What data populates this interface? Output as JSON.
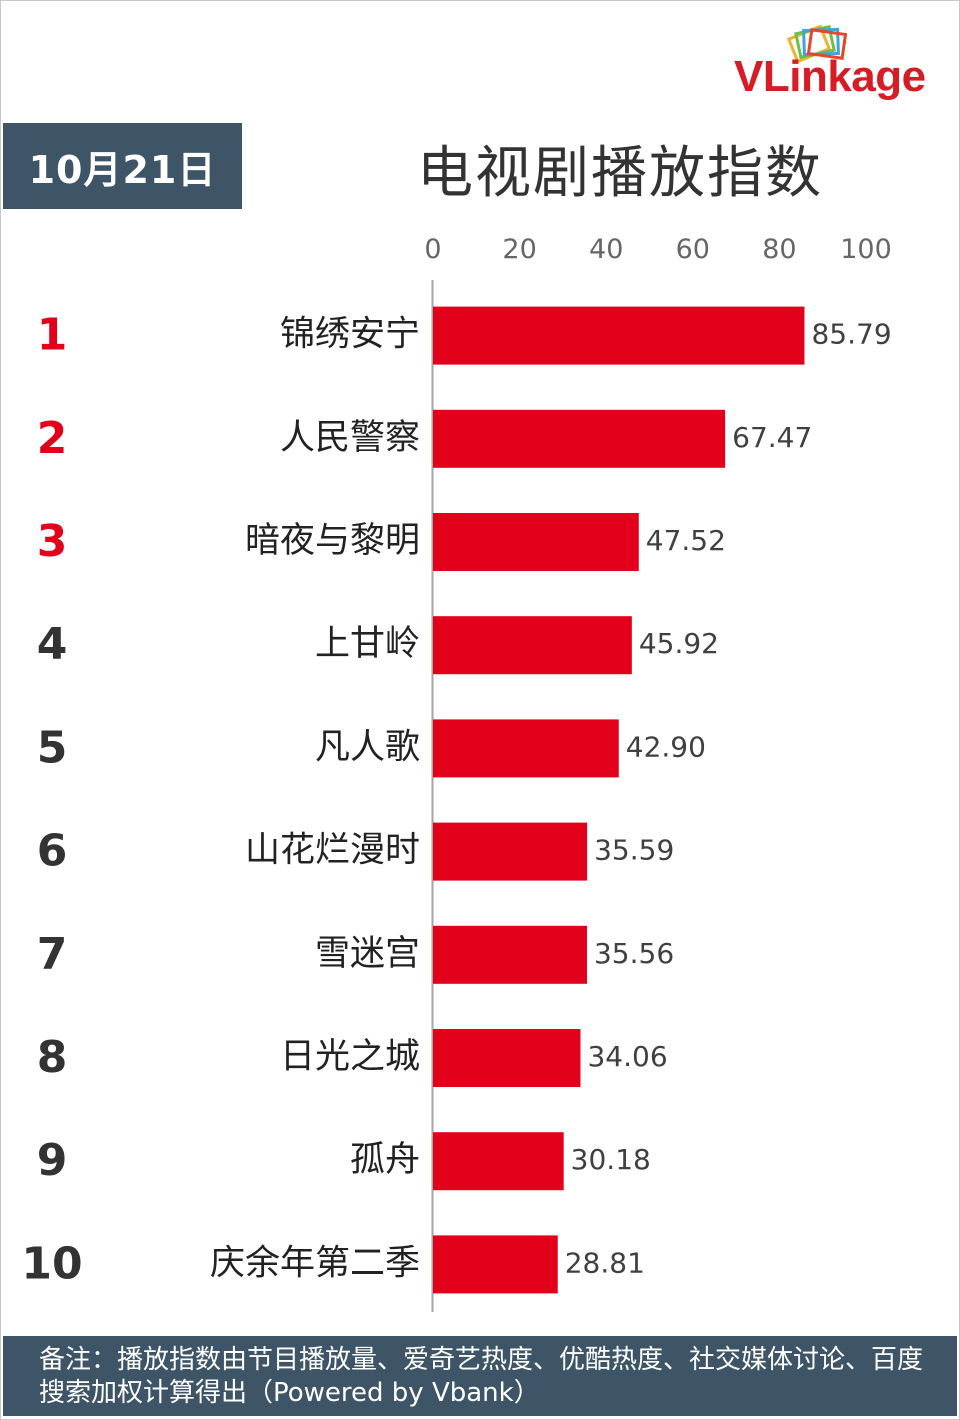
{
  "date_label": "10月21日",
  "brand": {
    "name": "VLinkage",
    "primary_color": "#d81c25"
  },
  "colors": {
    "bar": "#e3001b",
    "top_rank": "#e3001b",
    "rank": "#333333",
    "header_bg": "#3e5567"
  },
  "note": "备注：播放指数由节目播放量、爱奇艺热度、优酷热度、社交媒体讨论、百度搜索加权计算得出（Powered by Vbank）",
  "chart_data": {
    "type": "bar",
    "orientation": "horizontal",
    "title": "电视剧播放指数",
    "xlim": [
      0,
      100
    ],
    "ticks": [
      0,
      20,
      40,
      60,
      80,
      100
    ],
    "grid": false,
    "ranks": [
      1,
      2,
      3,
      4,
      5,
      6,
      7,
      8,
      9,
      10
    ],
    "categories": [
      "锦绣安宁",
      "人民警察",
      "暗夜与黎明",
      "上甘岭",
      "凡人歌",
      "山花烂漫时",
      "雪迷宫",
      "日光之城",
      "孤舟",
      "庆余年第二季"
    ],
    "values": [
      85.79,
      67.47,
      47.52,
      45.92,
      42.9,
      35.59,
      35.56,
      34.06,
      30.18,
      28.81
    ],
    "value_labels": [
      "85.79",
      "67.47",
      "47.52",
      "45.92",
      "42.90",
      "35.59",
      "35.56",
      "34.06",
      "30.18",
      "28.81"
    ]
  }
}
